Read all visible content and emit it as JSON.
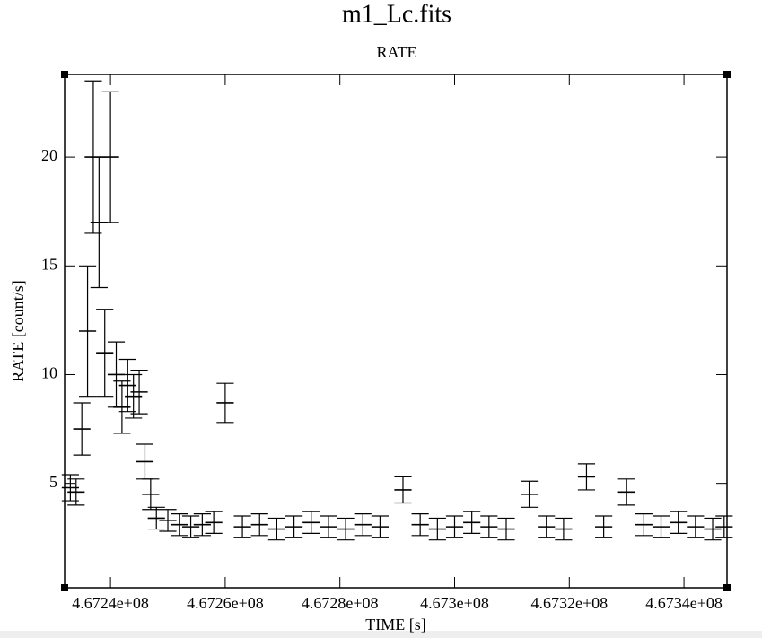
{
  "chart_data": {
    "type": "errorbar",
    "title": "m1_Lc.fits",
    "subtitle": "RATE",
    "x_label": "TIME [s]",
    "y_label": "RATE [count/s]",
    "xlim": [
      467232000,
      467347500
    ],
    "ylim": [
      0.2,
      23.8
    ],
    "xticks": [
      {
        "value": 467240000,
        "label": "4.6724e+08"
      },
      {
        "value": 467260000,
        "label": "4.6726e+08"
      },
      {
        "value": 467280000,
        "label": "4.6728e+08"
      },
      {
        "value": 467300000,
        "label": "4.673e+08"
      },
      {
        "value": 467320000,
        "label": "4.6732e+08"
      },
      {
        "value": 467340000,
        "label": "4.6734e+08"
      }
    ],
    "yticks": [
      5,
      10,
      15,
      20
    ],
    "color": "#000000",
    "xerr": 1500,
    "x": [
      467233000,
      467234000,
      467235000,
      467236000,
      467237000,
      467238000,
      467239000,
      467240000,
      467241000,
      467242000,
      467243000,
      467244000,
      467245000,
      467246000,
      467247000,
      467248000,
      467250000,
      467252000,
      467254000,
      467256000,
      467258000,
      467260000,
      467263000,
      467266000,
      467269000,
      467272000,
      467275000,
      467278000,
      467281000,
      467284000,
      467287000,
      467291000,
      467294000,
      467297000,
      467300000,
      467303000,
      467306000,
      467309000,
      467313000,
      467316000,
      467319000,
      467323000,
      467326000,
      467330000,
      467333000,
      467336000,
      467339000,
      467342000,
      467345000,
      467347000
    ],
    "values": [
      4.8,
      4.6,
      7.5,
      12,
      20,
      17,
      11,
      20,
      10,
      8.5,
      9.5,
      9,
      9.2,
      6,
      4.5,
      3.4,
      3.3,
      3.1,
      3.0,
      3.1,
      3.2,
      8.7,
      3.0,
      3.1,
      2.9,
      3.0,
      3.2,
      3.0,
      2.9,
      3.1,
      3.0,
      4.7,
      3.1,
      2.9,
      3.0,
      3.2,
      3.0,
      2.9,
      4.5,
      3.0,
      2.9,
      5.3,
      3.0,
      4.6,
      3.1,
      3.0,
      3.2,
      3.0,
      2.9,
      3.0
    ],
    "errors": [
      0.6,
      0.6,
      1.2,
      3,
      3.5,
      3,
      2,
      3,
      1.5,
      1.2,
      1.2,
      1,
      1,
      0.8,
      0.7,
      0.5,
      0.5,
      0.5,
      0.5,
      0.5,
      0.5,
      0.9,
      0.5,
      0.5,
      0.5,
      0.5,
      0.5,
      0.5,
      0.5,
      0.5,
      0.5,
      0.6,
      0.5,
      0.5,
      0.5,
      0.5,
      0.5,
      0.5,
      0.6,
      0.5,
      0.5,
      0.6,
      0.5,
      0.6,
      0.5,
      0.5,
      0.5,
      0.5,
      0.5,
      0.5
    ]
  }
}
